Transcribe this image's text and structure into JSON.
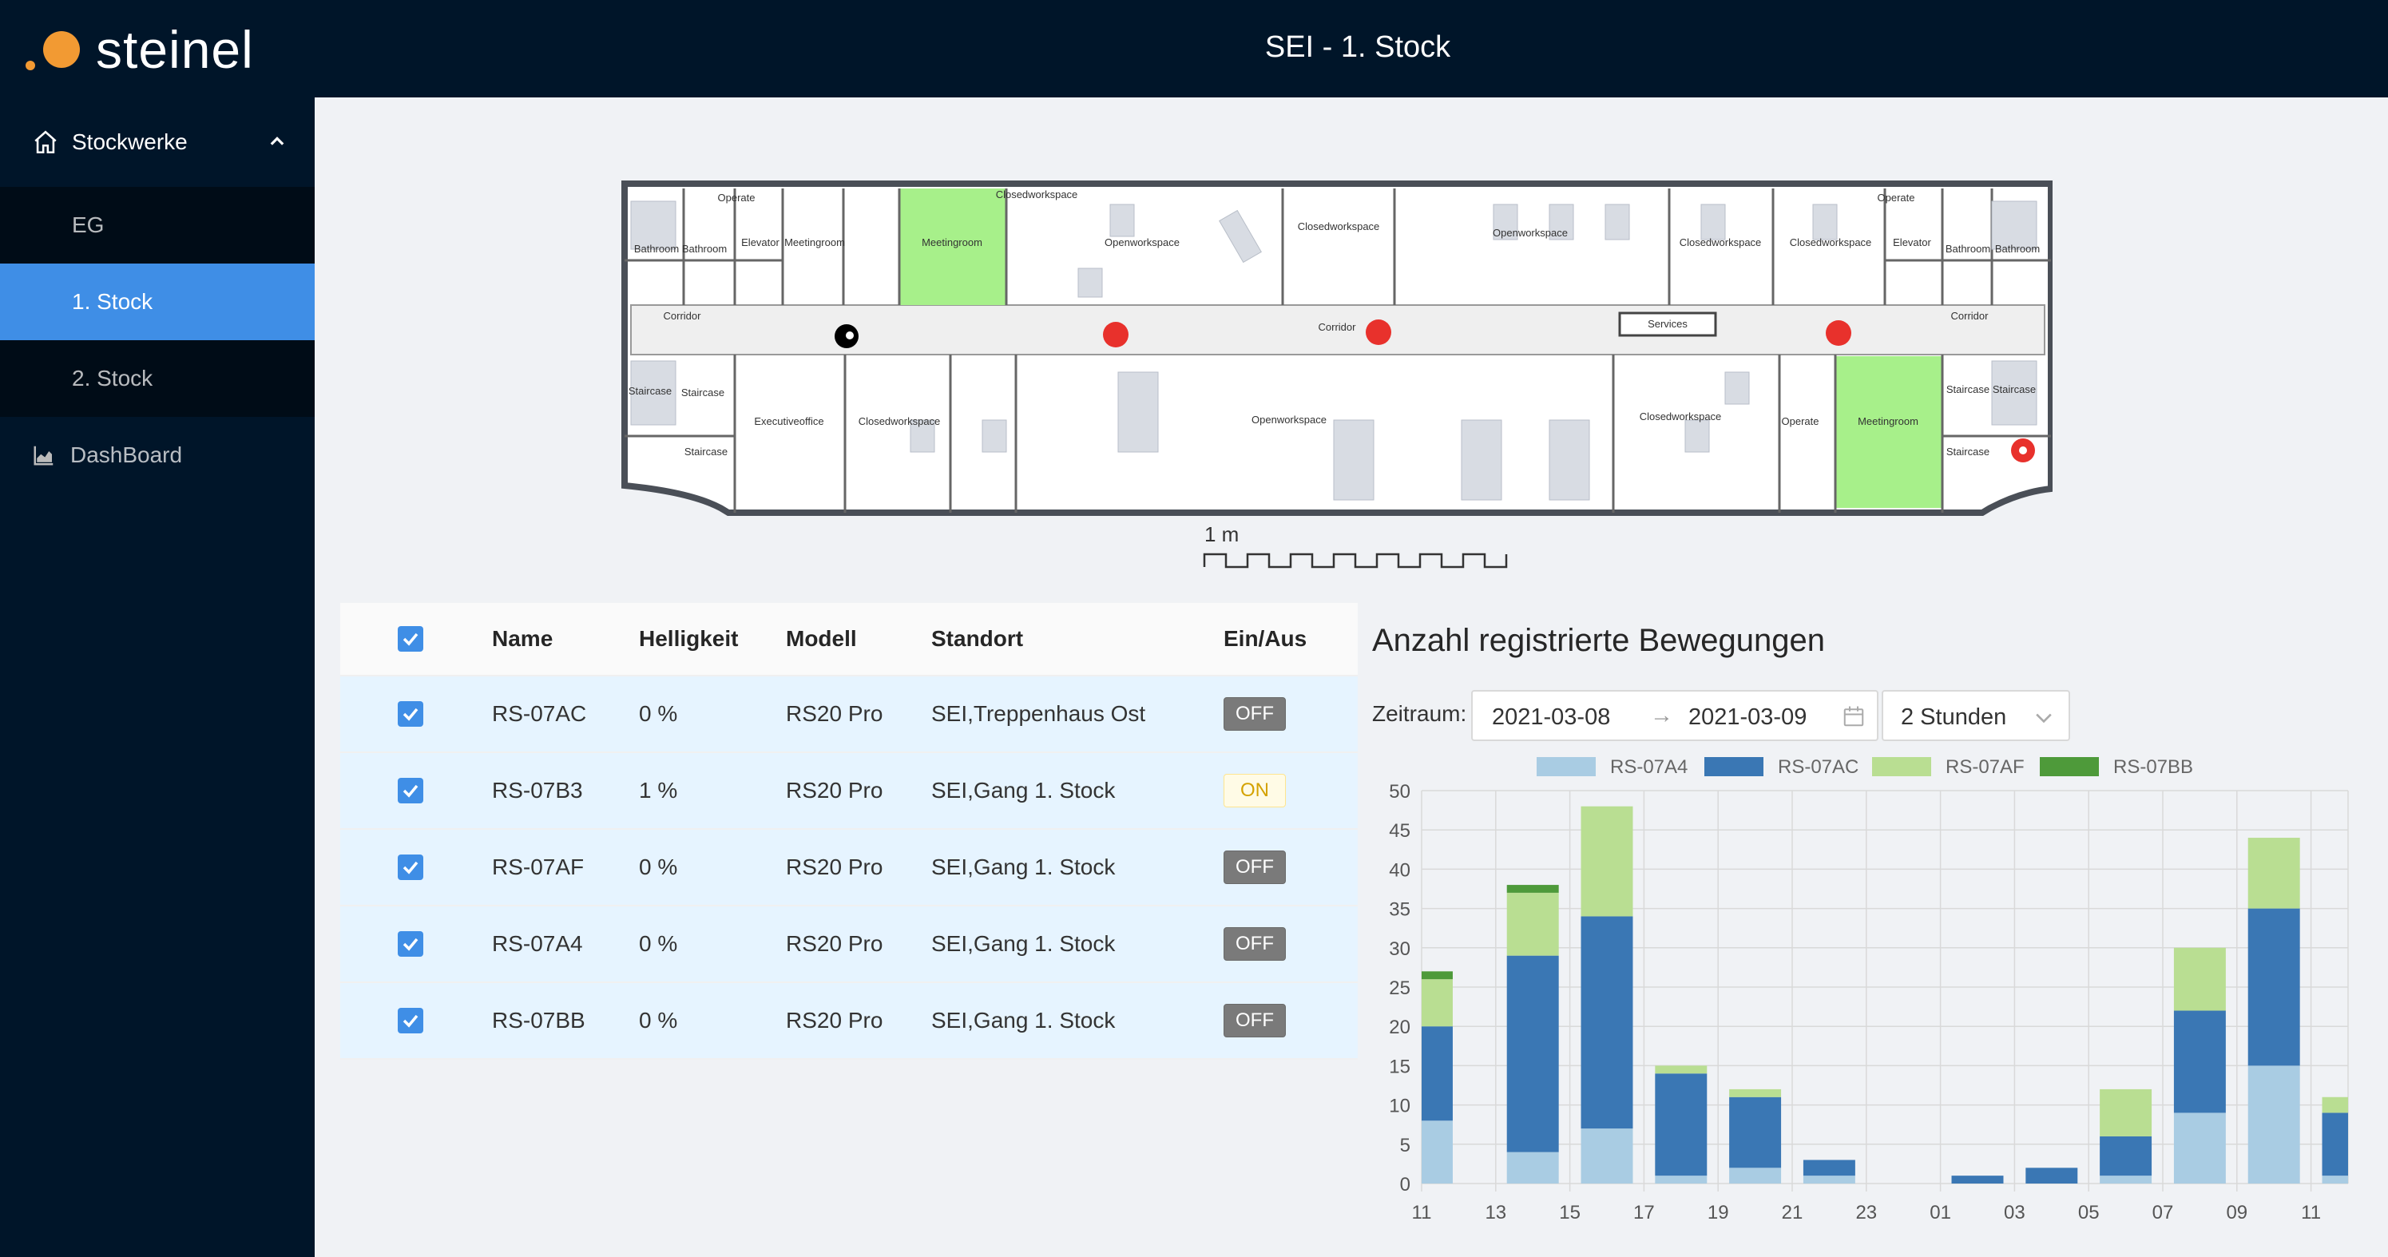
{
  "header": {
    "brand": "steinel",
    "title": "SEI - 1. Stock"
  },
  "sidebar": {
    "group_label": "Stockwerke",
    "items": [
      {
        "label": "EG",
        "active": false
      },
      {
        "label": "1. Stock",
        "active": true
      },
      {
        "label": "2. Stock",
        "active": false
      }
    ],
    "dashboard_label": "DashBoard"
  },
  "floorplan": {
    "scale_label": "1 m",
    "rooms": [
      "Operate",
      "Bathroom",
      "Bathroom",
      "Elevator",
      "Meetingroom",
      "Meetingroom",
      "Closedworkspace",
      "Openworkspace",
      "Closedworkspace",
      "Openworkspace",
      "Closedworkspace",
      "Closedworkspace",
      "Operate",
      "Elevator",
      "Bathroom",
      "Bathroom",
      "Corridor",
      "Corridor",
      "Services",
      "Corridor",
      "Staircase",
      "Staircase",
      "Staircase",
      "Executiveoffice",
      "Closedworkspace",
      "Openworkspace",
      "Closedworkspace",
      "Operate",
      "Meetingroom",
      "Staircase",
      "Staircase",
      "Staircase"
    ]
  },
  "table": {
    "headers": {
      "name": "Name",
      "brightness": "Helligkeit",
      "model": "Modell",
      "location": "Standort",
      "switch": "Ein/Aus"
    },
    "rows": [
      {
        "name": "RS-07AC",
        "brightness": "0 %",
        "model": "RS20 Pro",
        "location": "SEI,Treppenhaus Ost",
        "state": "OFF"
      },
      {
        "name": "RS-07B3",
        "brightness": "1 %",
        "model": "RS20 Pro",
        "location": "SEI,Gang 1. Stock",
        "state": "ON"
      },
      {
        "name": "RS-07AF",
        "brightness": "0 %",
        "model": "RS20 Pro",
        "location": "SEI,Gang 1. Stock",
        "state": "OFF"
      },
      {
        "name": "RS-07A4",
        "brightness": "0 %",
        "model": "RS20 Pro",
        "location": "SEI,Gang 1. Stock",
        "state": "OFF"
      },
      {
        "name": "RS-07BB",
        "brightness": "0 %",
        "model": "RS20 Pro",
        "location": "SEI,Gang 1. Stock",
        "state": "OFF"
      }
    ]
  },
  "chart_panel": {
    "title": "Anzahl registrierte Bewegungen",
    "range_label": "Zeitraum:",
    "date_from": "2021-03-08",
    "date_to": "2021-03-09",
    "arrow": "→",
    "interval": "2 Stunden"
  },
  "colors": {
    "accent": "#3f8ee6",
    "header_bg": "#001529",
    "brand_dot": "#f29a33"
  },
  "chart_data": {
    "type": "bar",
    "stacked": true,
    "categories": [
      "11",
      "13",
      "15",
      "17",
      "19",
      "21",
      "23",
      "01",
      "03",
      "05",
      "07",
      "09",
      "11"
    ],
    "series": [
      {
        "name": "RS-07A4",
        "color": "#a9cce3",
        "values": [
          8,
          4,
          7,
          1,
          2,
          1,
          0,
          0,
          0,
          1,
          9,
          15,
          1
        ]
      },
      {
        "name": "RS-07AC",
        "color": "#3a77b4",
        "values": [
          12,
          25,
          27,
          13,
          9,
          2,
          0,
          1,
          2,
          5,
          13,
          20,
          8
        ]
      },
      {
        "name": "RS-07AF",
        "color": "#b9de92",
        "values": [
          6,
          8,
          14,
          1,
          1,
          0,
          0,
          0,
          0,
          6,
          8,
          9,
          2
        ]
      },
      {
        "name": "RS-07BB",
        "color": "#4e9a3a",
        "values": [
          1,
          1,
          0,
          0,
          0,
          0,
          0,
          0,
          0,
          0,
          0,
          0,
          0
        ]
      }
    ],
    "yticks": [
      "0",
      "5",
      "10",
      "15",
      "20",
      "25",
      "30",
      "35",
      "40",
      "45",
      "50"
    ],
    "ylim": [
      0,
      50
    ],
    "grid": true,
    "legend": "top"
  }
}
